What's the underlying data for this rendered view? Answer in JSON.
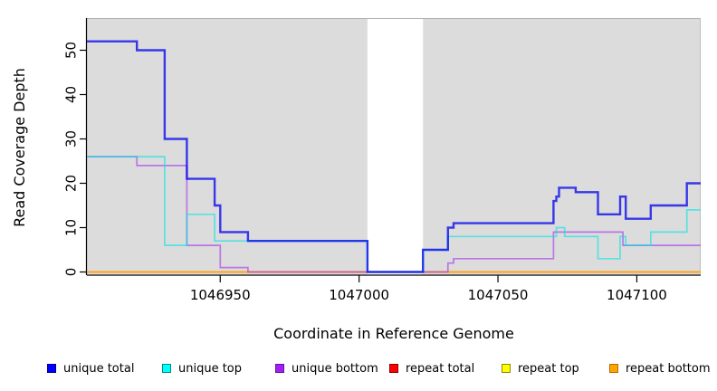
{
  "chart_data": {
    "type": "line",
    "subtype": "step-coverage",
    "title": "",
    "xlabel": "Coordinate in Reference Genome",
    "ylabel": "Read Coverage Depth",
    "x_range": [
      1046902,
      1047123
    ],
    "y_ticks": [
      0,
      10,
      20,
      30,
      40,
      50
    ],
    "x_ticks": [
      1046950,
      1047000,
      1047050,
      1047100
    ],
    "ylim": [
      0,
      52
    ],
    "grid": false,
    "plot_background": "#DCDCDC",
    "gap_region": {
      "x_start": 1047003,
      "x_end": 1047023,
      "note": "white band, no background; all series at 0"
    },
    "series": [
      {
        "name": "repeat total",
        "color": "#DD0000",
        "opacity": 1,
        "width": 1.5,
        "steps": [
          [
            1046902,
            0
          ]
        ]
      },
      {
        "name": "repeat top",
        "color": "#FFFF00",
        "opacity": 1,
        "width": 1.5,
        "steps": [
          [
            1046902,
            0
          ]
        ]
      },
      {
        "name": "repeat bottom",
        "color": "#FFA319",
        "opacity": 1,
        "width": 2.0,
        "steps": [
          [
            1046902,
            0
          ]
        ]
      },
      {
        "name": "unique bottom",
        "color": "#A020F0",
        "opacity": 0.55,
        "width": 1.7,
        "steps": [
          [
            1046902,
            26
          ],
          [
            1046920,
            24
          ],
          [
            1046938,
            6
          ],
          [
            1046950,
            1
          ],
          [
            1046960,
            0
          ],
          [
            1047032,
            2
          ],
          [
            1047034,
            3
          ],
          [
            1047070,
            9
          ],
          [
            1047095,
            6
          ]
        ]
      },
      {
        "name": "unique top",
        "color": "#00E5E5",
        "opacity": 0.6,
        "width": 1.7,
        "steps": [
          [
            1046902,
            26
          ],
          [
            1046930,
            6
          ],
          [
            1046938,
            13
          ],
          [
            1046948,
            7
          ],
          [
            1047003,
            0
          ],
          [
            1047023,
            5
          ],
          [
            1047032,
            8
          ],
          [
            1047071,
            10
          ],
          [
            1047074,
            8
          ],
          [
            1047086,
            3
          ],
          [
            1047094,
            8
          ],
          [
            1047096,
            6
          ],
          [
            1047105,
            9
          ],
          [
            1047118,
            14
          ]
        ]
      },
      {
        "name": "unique total",
        "color": "#0000EE",
        "opacity": 0.75,
        "width": 2.4,
        "steps": [
          [
            1046902,
            52
          ],
          [
            1046920,
            50
          ],
          [
            1046930,
            30
          ],
          [
            1046938,
            21
          ],
          [
            1046948,
            15
          ],
          [
            1046950,
            9
          ],
          [
            1046960,
            7
          ],
          [
            1047003,
            0
          ],
          [
            1047023,
            5
          ],
          [
            1047032,
            10
          ],
          [
            1047034,
            11
          ],
          [
            1047070,
            16
          ],
          [
            1047071,
            17
          ],
          [
            1047072,
            19
          ],
          [
            1047078,
            18
          ],
          [
            1047086,
            13
          ],
          [
            1047094,
            17
          ],
          [
            1047096,
            12
          ],
          [
            1047105,
            15
          ],
          [
            1047118,
            20
          ]
        ]
      }
    ],
    "legend": [
      {
        "label": "unique total",
        "fill": "#0000FF",
        "border": "#00008B"
      },
      {
        "label": "unique top",
        "fill": "#00FFFF",
        "border": "#008B8B"
      },
      {
        "label": "unique bottom",
        "fill": "#A020F0",
        "border": "#6A0DAD"
      },
      {
        "label": "repeat total",
        "fill": "#FF0000",
        "border": "#8B0000"
      },
      {
        "label": "repeat top",
        "fill": "#FFFF00",
        "border": "#8B8B00"
      },
      {
        "label": "repeat bottom",
        "fill": "#FFA500",
        "border": "#B86D00"
      }
    ],
    "legend_position": "bottom"
  }
}
